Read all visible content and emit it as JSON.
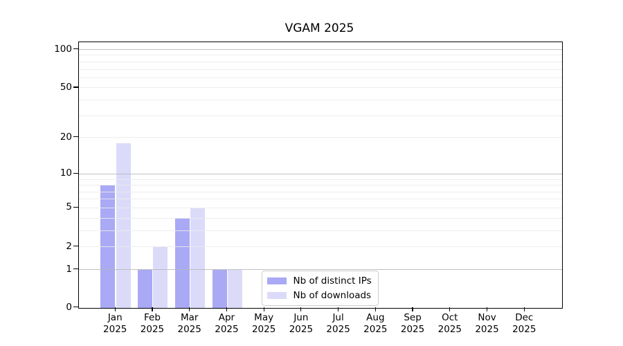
{
  "figure": {
    "title": "VGAM 2025"
  },
  "chart_data": {
    "type": "bar",
    "title": "VGAM 2025",
    "x_axis": {
      "categories": [
        "Jan",
        "Feb",
        "Mar",
        "Apr",
        "May",
        "Jun",
        "Jul",
        "Aug",
        "Sep",
        "Oct",
        "Nov",
        "Dec"
      ],
      "year": "2025"
    },
    "y_axis": {
      "scale": "log1p",
      "ticks": [
        0,
        1,
        2,
        5,
        10,
        20,
        50,
        100
      ],
      "major_gridlines": [
        1,
        10,
        100
      ],
      "minor_gridlines": [
        2,
        3,
        4,
        5,
        6,
        7,
        8,
        9,
        20,
        30,
        40,
        50,
        60,
        70,
        80,
        90
      ],
      "range": [
        0,
        115
      ],
      "grid": true
    },
    "series": [
      {
        "name": "Nb of distinct IPs",
        "color": "#a9a9f5",
        "values": [
          8,
          1,
          4,
          1,
          0,
          0,
          0,
          0,
          0,
          0,
          0,
          0
        ]
      },
      {
        "name": "Nb of downloads",
        "color": "#dbdbf9",
        "values": [
          18,
          2,
          5,
          1,
          0,
          0,
          0,
          0,
          0,
          0,
          0,
          0
        ]
      }
    ],
    "legend": {
      "position": "bottom-center",
      "entries": [
        "Nb of distinct IPs",
        "Nb of downloads"
      ]
    }
  },
  "colors": {
    "background": "#ffffff",
    "axis": "#000000",
    "grid_major": "#b6b6b6",
    "grid_minor": "#ebebeb",
    "legend_border": "#cccccc"
  }
}
